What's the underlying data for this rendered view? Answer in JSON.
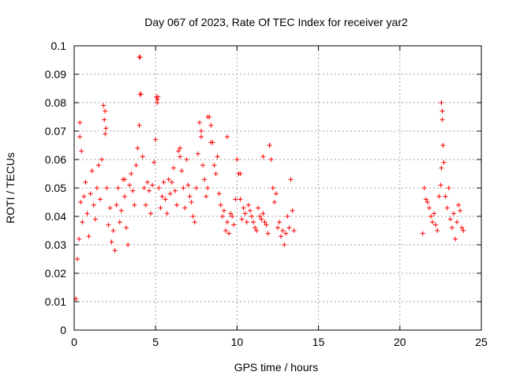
{
  "chart_data": {
    "type": "scatter",
    "title": "Day 067 of 2023, Rate Of TEC Index for receiver yar2",
    "xlabel": "GPS time / hours",
    "ylabel": "ROTI / TECUs",
    "xlim": [
      0,
      25
    ],
    "ylim": [
      0,
      0.1
    ],
    "x_ticks": [
      0,
      5,
      10,
      15,
      20,
      25
    ],
    "x_tick_labels": [
      "0",
      "5",
      "10",
      "15",
      "20",
      "25"
    ],
    "y_ticks": [
      0,
      0.01,
      0.02,
      0.03,
      0.04,
      0.05,
      0.06,
      0.07,
      0.08,
      0.09,
      0.1
    ],
    "y_tick_labels": [
      "0",
      "0.01",
      "0.02",
      "0.03",
      "0.04",
      "0.05",
      "0.06",
      "0.07",
      "0.08",
      "0.09",
      "0.1"
    ],
    "grid": true,
    "marker": "+",
    "series_color": "#ff0000",
    "x": [
      0.1,
      0.2,
      0.3,
      0.35,
      0.4,
      0.45,
      0.5,
      0.6,
      0.7,
      0.8,
      0.9,
      1.0,
      1.1,
      1.2,
      1.3,
      1.4,
      1.5,
      1.6,
      1.7,
      1.8,
      1.85,
      1.9,
      2.0,
      2.1,
      2.2,
      2.3,
      2.4,
      2.5,
      2.6,
      2.7,
      2.8,
      2.9,
      3.0,
      3.1,
      3.2,
      3.3,
      3.4,
      3.5,
      3.6,
      3.7,
      3.8,
      3.9,
      4.0,
      4.05,
      4.1,
      4.2,
      4.3,
      4.4,
      4.5,
      4.6,
      4.7,
      4.8,
      4.9,
      5.0,
      5.05,
      5.1,
      5.2,
      5.3,
      5.4,
      5.5,
      5.6,
      5.7,
      5.8,
      5.9,
      6.0,
      6.1,
      6.2,
      6.3,
      6.4,
      6.5,
      6.6,
      6.7,
      6.8,
      6.9,
      7.0,
      7.1,
      7.2,
      7.3,
      7.4,
      7.5,
      7.6,
      7.7,
      7.8,
      7.9,
      8.0,
      8.1,
      8.2,
      8.3,
      8.4,
      8.5,
      8.6,
      8.7,
      8.8,
      8.9,
      9.0,
      9.1,
      9.2,
      9.3,
      9.4,
      9.5,
      9.6,
      9.7,
      9.8,
      9.9,
      10.0,
      10.1,
      10.2,
      10.3,
      10.4,
      10.5,
      10.6,
      10.7,
      10.8,
      10.9,
      11.0,
      11.1,
      11.2,
      11.3,
      11.4,
      11.5,
      11.6,
      11.7,
      11.8,
      11.9,
      12.0,
      12.1,
      12.2,
      12.3,
      12.4,
      12.5,
      12.6,
      12.7,
      12.8,
      12.9,
      13.0,
      13.1,
      13.2,
      13.3,
      13.4,
      13.5,
      21.4,
      21.5,
      21.6,
      21.7,
      21.8,
      21.9,
      22.0,
      22.1,
      22.2,
      22.3,
      22.4,
      22.5,
      22.55,
      22.6,
      22.7,
      22.8,
      22.9,
      23.0,
      23.1,
      23.2,
      23.3,
      23.4,
      23.5,
      23.6,
      23.7,
      23.8,
      23.9,
      4.0,
      4.05,
      5.1,
      5.15,
      8.2,
      8.4,
      12.0,
      22.55,
      22.6,
      22.65,
      1.9,
      1.95,
      6.5,
      9.4,
      10.2,
      7.8,
      3.1,
      0.35,
      11.6
    ],
    "y": [
      0.011,
      0.025,
      0.032,
      0.073,
      0.045,
      0.063,
      0.038,
      0.047,
      0.052,
      0.041,
      0.033,
      0.048,
      0.056,
      0.044,
      0.039,
      0.05,
      0.058,
      0.046,
      0.06,
      0.079,
      0.074,
      0.069,
      0.05,
      0.037,
      0.043,
      0.031,
      0.035,
      0.028,
      0.044,
      0.05,
      0.038,
      0.042,
      0.053,
      0.047,
      0.036,
      0.03,
      0.051,
      0.055,
      0.049,
      0.044,
      0.058,
      0.064,
      0.072,
      0.096,
      0.083,
      0.061,
      0.05,
      0.044,
      0.052,
      0.049,
      0.041,
      0.051,
      0.059,
      0.067,
      0.082,
      0.08,
      0.05,
      0.043,
      0.047,
      0.052,
      0.046,
      0.041,
      0.053,
      0.048,
      0.052,
      0.057,
      0.049,
      0.044,
      0.063,
      0.061,
      0.056,
      0.05,
      0.043,
      0.06,
      0.051,
      0.047,
      0.045,
      0.04,
      0.038,
      0.05,
      0.062,
      0.073,
      0.068,
      0.058,
      0.053,
      0.047,
      0.05,
      0.075,
      0.072,
      0.066,
      0.058,
      0.055,
      0.061,
      0.048,
      0.044,
      0.04,
      0.042,
      0.035,
      0.038,
      0.034,
      0.041,
      0.04,
      0.037,
      0.046,
      0.06,
      0.055,
      0.046,
      0.039,
      0.043,
      0.041,
      0.038,
      0.044,
      0.042,
      0.04,
      0.038,
      0.036,
      0.035,
      0.043,
      0.04,
      0.039,
      0.041,
      0.038,
      0.037,
      0.034,
      0.065,
      0.06,
      0.05,
      0.045,
      0.048,
      0.036,
      0.038,
      0.033,
      0.035,
      0.03,
      0.034,
      0.04,
      0.036,
      0.053,
      0.042,
      0.035,
      0.034,
      0.05,
      0.046,
      0.045,
      0.043,
      0.04,
      0.038,
      0.041,
      0.037,
      0.035,
      0.047,
      0.051,
      0.057,
      0.074,
      0.059,
      0.047,
      0.043,
      0.05,
      0.039,
      0.036,
      0.041,
      0.032,
      0.038,
      0.044,
      0.042,
      0.036,
      0.035,
      0.096,
      0.083,
      0.081,
      0.082,
      0.075,
      0.066,
      0.065,
      0.08,
      0.077,
      0.065,
      0.077,
      0.071,
      0.064,
      0.068,
      0.055,
      0.07,
      0.053,
      0.068,
      0.061
    ]
  }
}
